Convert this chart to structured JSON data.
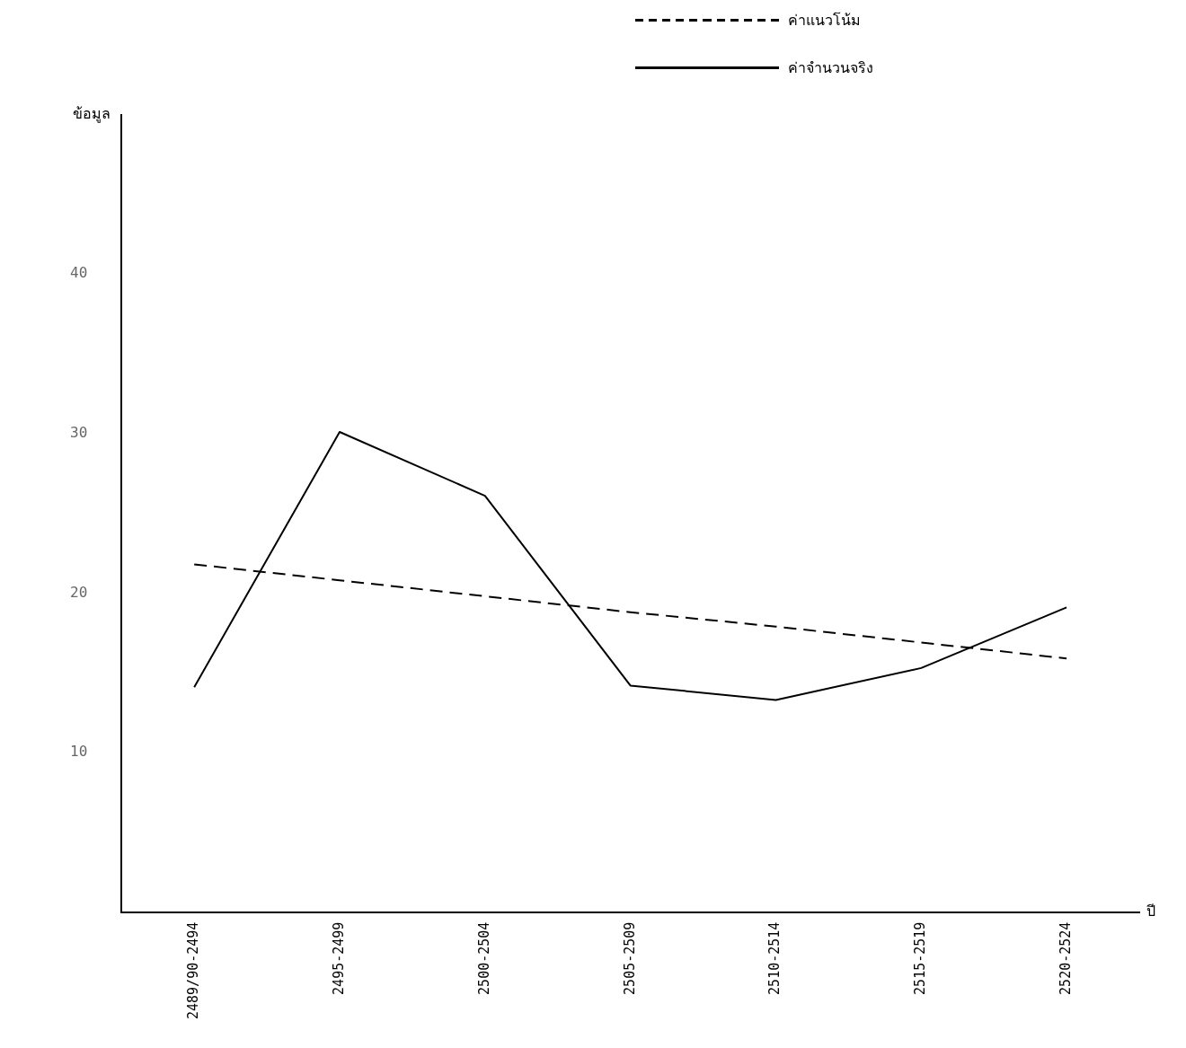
{
  "chart_data": {
    "type": "line",
    "xlabel": "ปี",
    "ylabel": "ข้อมูล",
    "categories": [
      "2489/90-2494",
      "2495-2499",
      "2500-2504",
      "2505-2509",
      "2510-2514",
      "2515-2519",
      "2520-2524"
    ],
    "series": [
      {
        "name": "ค่าแนวโน้ม",
        "color": "#000000",
        "line_style": "dashed",
        "values": [
          21.8,
          20.8,
          19.8,
          18.8,
          17.9,
          16.9,
          15.9
        ]
      },
      {
        "name": "ค่าจำนวนจริง",
        "color": "#000000",
        "line_style": "solid",
        "values": [
          14.1,
          30.1,
          26.1,
          14.2,
          13.3,
          15.3,
          19.1
        ]
      }
    ],
    "ylim": [
      0,
      50
    ],
    "yticks": [
      10,
      20,
      30,
      40
    ],
    "grid": false,
    "legend": "top right",
    "marker": "none"
  }
}
